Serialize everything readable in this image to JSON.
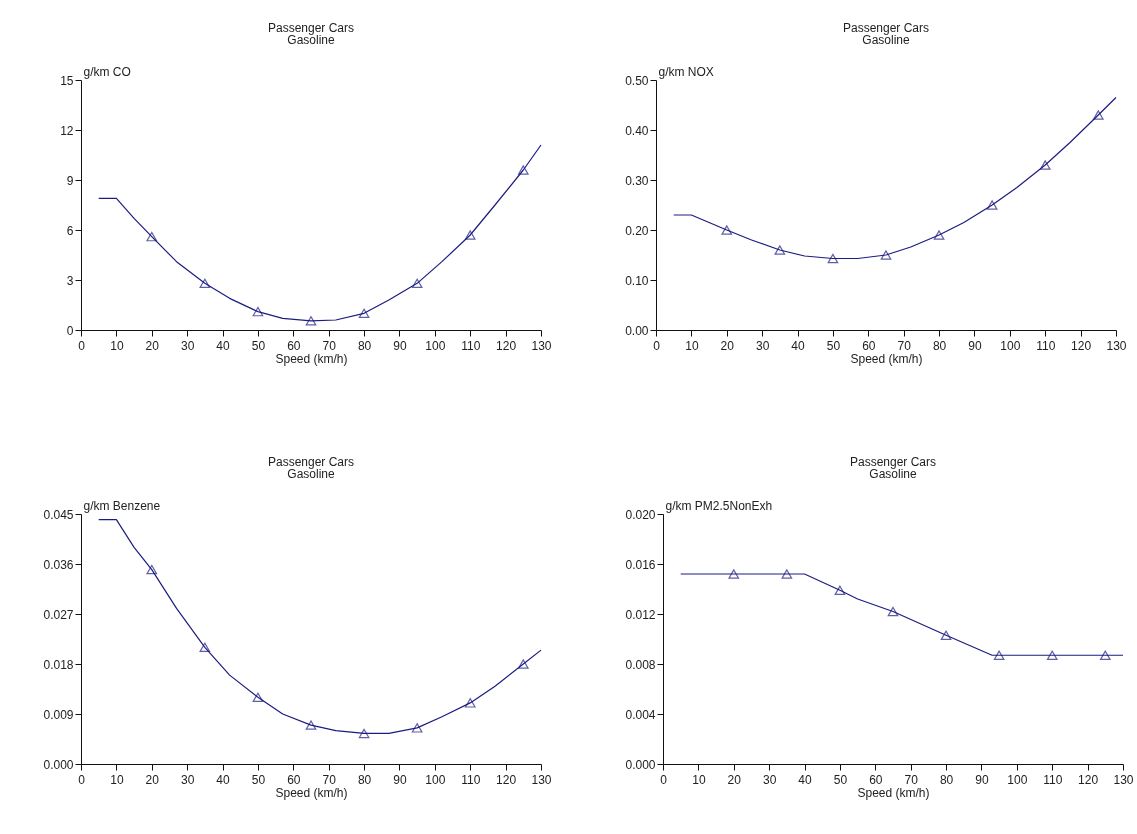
{
  "chart_data": [
    {
      "type": "line",
      "title": "Passenger Cars",
      "subtitle": "Gasoline",
      "xlabel": "Speed (km/h)",
      "ylabel": "g/km CO",
      "xlim": [
        0,
        130
      ],
      "xticks": [
        0,
        10,
        20,
        30,
        40,
        50,
        60,
        70,
        80,
        90,
        100,
        110,
        120,
        130
      ],
      "ylim": [
        0,
        15
      ],
      "yticks": [
        0,
        3,
        6,
        9,
        12,
        15
      ],
      "grid": false,
      "series": [
        {
          "color": "#1c1c80",
          "marker": "none",
          "x": [
            5,
            10,
            15,
            20,
            27,
            35,
            42,
            50,
            57,
            65,
            72,
            80,
            87,
            95,
            102,
            110,
            117,
            125,
            130
          ],
          "values": [
            7.9,
            7.9,
            6.7,
            5.6,
            4.1,
            2.8,
            1.9,
            1.1,
            0.7,
            0.55,
            0.6,
            1.0,
            1.8,
            2.8,
            4.1,
            5.7,
            7.5,
            9.6,
            11.1
          ]
        },
        {
          "type": "scatter",
          "color": "#1c1c80",
          "marker": "triangle",
          "x": [
            20,
            35,
            50,
            65,
            80,
            95,
            110,
            125
          ],
          "values": [
            5.6,
            2.8,
            1.1,
            0.55,
            1.0,
            2.8,
            5.7,
            9.6
          ]
        }
      ]
    },
    {
      "type": "line",
      "title": "Passenger Cars",
      "subtitle": "Gasoline",
      "xlabel": "Speed (km/h)",
      "ylabel": "g/km NOX",
      "xlim": [
        0,
        130
      ],
      "xticks": [
        0,
        10,
        20,
        30,
        40,
        50,
        60,
        70,
        80,
        90,
        100,
        110,
        120,
        130
      ],
      "ylim": [
        0,
        0.5
      ],
      "yticks": [
        {
          "value": 0,
          "label": "0.00"
        },
        {
          "value": 0.1,
          "label": "0.10"
        },
        {
          "value": 0.2,
          "label": "0.20"
        },
        {
          "value": 0.3,
          "label": "0.30"
        },
        {
          "value": 0.4,
          "label": "0.40"
        },
        {
          "value": 0.5,
          "label": "0.50"
        }
      ],
      "grid": false,
      "series": [
        {
          "color": "#1c1c80",
          "marker": "none",
          "x": [
            5,
            10,
            20,
            27,
            35,
            42,
            50,
            57,
            65,
            72,
            80,
            87,
            95,
            102,
            110,
            117,
            125,
            130
          ],
          "values": [
            0.23,
            0.23,
            0.2,
            0.18,
            0.16,
            0.148,
            0.143,
            0.143,
            0.15,
            0.166,
            0.19,
            0.215,
            0.25,
            0.285,
            0.33,
            0.375,
            0.43,
            0.465
          ]
        },
        {
          "type": "scatter",
          "color": "#1c1c80",
          "marker": "triangle",
          "x": [
            20,
            35,
            50,
            65,
            80,
            95,
            110,
            125
          ],
          "values": [
            0.2,
            0.16,
            0.143,
            0.15,
            0.19,
            0.25,
            0.33,
            0.43
          ]
        }
      ]
    },
    {
      "type": "line",
      "title": "Passenger Cars",
      "subtitle": "Gasoline",
      "xlabel": "Speed (km/h)",
      "ylabel": "g/km Benzene",
      "xlim": [
        0,
        130
      ],
      "xticks": [
        0,
        10,
        20,
        30,
        40,
        50,
        60,
        70,
        80,
        90,
        100,
        110,
        120,
        130
      ],
      "ylim": [
        0,
        0.045
      ],
      "yticks": [
        {
          "value": 0,
          "label": "0.000"
        },
        0.009,
        0.018,
        0.027,
        0.036,
        0.045
      ],
      "grid": false,
      "series": [
        {
          "color": "#1c1c80",
          "marker": "none",
          "x": [
            5,
            10,
            15,
            20,
            27,
            35,
            42,
            50,
            57,
            65,
            72,
            80,
            87,
            95,
            102,
            110,
            117,
            125,
            130
          ],
          "values": [
            0.044,
            0.044,
            0.039,
            0.035,
            0.028,
            0.021,
            0.016,
            0.012,
            0.009,
            0.007,
            0.006,
            0.0055,
            0.0055,
            0.0065,
            0.0085,
            0.011,
            0.014,
            0.018,
            0.0205
          ]
        },
        {
          "type": "scatter",
          "color": "#1c1c80",
          "marker": "triangle",
          "x": [
            20,
            35,
            50,
            65,
            80,
            95,
            110,
            125
          ],
          "values": [
            0.035,
            0.021,
            0.012,
            0.007,
            0.0055,
            0.0065,
            0.011,
            0.018
          ]
        }
      ]
    },
    {
      "type": "line",
      "title": "Passenger Cars",
      "subtitle": "Gasoline",
      "xlabel": "Speed (km/h)",
      "ylabel": "g/km PM2.5NonExh",
      "xlim": [
        0,
        130
      ],
      "xticks": [
        0,
        10,
        20,
        30,
        40,
        50,
        60,
        70,
        80,
        90,
        100,
        110,
        120,
        130
      ],
      "ylim": [
        0,
        0.02
      ],
      "yticks": [
        {
          "value": 0,
          "label": "0.000"
        },
        0.004,
        0.008,
        0.012,
        0.016,
        {
          "value": 0.02,
          "label": "0.020"
        }
      ],
      "grid": false,
      "series": [
        {
          "color": "#1c1c80",
          "marker": "none",
          "x": [
            5,
            40,
            50,
            55,
            65,
            80,
            93,
            130
          ],
          "values": [
            0.0152,
            0.0152,
            0.0139,
            0.0132,
            0.0122,
            0.0103,
            0.0087,
            0.0087
          ]
        },
        {
          "type": "scatter",
          "color": "#1c1c80",
          "marker": "triangle",
          "x": [
            20,
            35,
            50,
            65,
            80,
            95,
            110,
            125
          ],
          "values": [
            0.0152,
            0.0152,
            0.0139,
            0.0122,
            0.0103,
            0.0087,
            0.0087,
            0.0087
          ]
        }
      ]
    }
  ]
}
